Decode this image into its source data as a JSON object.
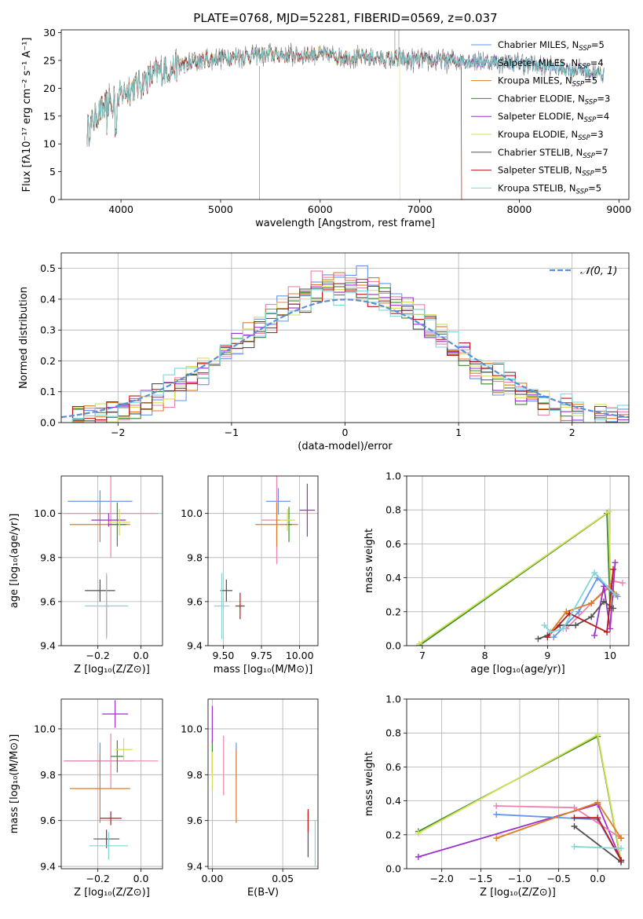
{
  "colors": {
    "chabrier_miles": "#6495ed",
    "salpeter_miles": "#ee82ae",
    "kroupa_miles": "#e07b22",
    "chabrier_elodie": "#3a8a2e",
    "salpeter_elodie": "#9932cc",
    "kroupa_elodie": "#d4e157",
    "chabrier_stelib": "#505050",
    "salpeter_stelib": "#c01818",
    "kroupa_stelib": "#7fd6d6",
    "normal": "#5b8fd8"
  },
  "legend": [
    {
      "key": "chabrier_miles",
      "text": "Chabrier MILES, N",
      "sub": "SSP",
      "tail": "=5"
    },
    {
      "key": "salpeter_miles",
      "text": "Salpeter MILES, N",
      "sub": "SSP",
      "tail": "=4"
    },
    {
      "key": "kroupa_miles",
      "text": "Kroupa MILES, N",
      "sub": "SSP",
      "tail": "=5"
    },
    {
      "key": "chabrier_elodie",
      "text": "Chabrier ELODIE, N",
      "sub": "SSP",
      "tail": "=3"
    },
    {
      "key": "salpeter_elodie",
      "text": "Salpeter ELODIE, N",
      "sub": "SSP",
      "tail": "=4"
    },
    {
      "key": "kroupa_elodie",
      "text": "Kroupa ELODIE, N",
      "sub": "SSP",
      "tail": "=3"
    },
    {
      "key": "chabrier_stelib",
      "text": "Chabrier STELIB, N",
      "sub": "SSP",
      "tail": "=7"
    },
    {
      "key": "salpeter_stelib",
      "text": "Salpeter STELIB, N",
      "sub": "SSP",
      "tail": "=5"
    },
    {
      "key": "kroupa_stelib",
      "text": "Kroupa STELIB, N",
      "sub": "SSP",
      "tail": "=5"
    }
  ],
  "chart_data": [
    {
      "id": "spectrum",
      "type": "line",
      "title": "PLATE=0768, MJD=52281, FIBERID=0569, z=0.037",
      "xlabel": "wavelength [Angstrom, rest frame]",
      "ylabel": "Flux [fλ10⁻¹⁷ erg cm⁻² s⁻¹ A⁻¹]",
      "xlim": [
        3400,
        9100
      ],
      "ylim": [
        0,
        30.5
      ],
      "xticks": [
        4000,
        5000,
        6000,
        7000,
        8000,
        9000
      ],
      "yticks": [
        0,
        5,
        10,
        15,
        20,
        25,
        30
      ],
      "continuum": {
        "x": [
          3650,
          3750,
          3850,
          3950,
          4000,
          4100,
          4200,
          4300,
          4400,
          4500,
          4600,
          4800,
          5000,
          5500,
          6000,
          6500,
          7000,
          7500,
          8000,
          8500,
          8850
        ],
        "y": [
          12,
          15,
          17,
          18,
          19,
          20,
          21,
          22,
          23,
          23.5,
          24,
          25,
          25.5,
          26,
          26,
          25.5,
          25,
          25,
          24.5,
          23.5,
          22.5
        ]
      },
      "model_cutoffs": [
        {
          "key": "kroupa_elodie",
          "x": 6800
        },
        {
          "key": "salpeter_stelib",
          "x": 7420
        },
        {
          "key": "kroupa_miles",
          "x": 7420
        }
      ]
    },
    {
      "id": "residuals",
      "type": "histogram",
      "xlabel": "(data-model)/error",
      "ylabel": "Normed distribution",
      "xlim": [
        -2.5,
        2.5
      ],
      "ylim": [
        0,
        0.55
      ],
      "xticks": [
        -2,
        -1,
        0,
        1,
        2
      ],
      "yticks": [
        0.0,
        0.1,
        0.2,
        0.3,
        0.4,
        0.5
      ],
      "legend_label": "𝒩(0, 1)",
      "bin_width": 0.1
    },
    {
      "id": "age_vs_Z",
      "type": "scatter",
      "xlabel": "Z [log₁₀(Z/Z⊙)]",
      "ylabel": "age  [log₁₀(age/yr)]",
      "xlim": [
        -0.37,
        0.1
      ],
      "ylim": [
        9.4,
        10.17
      ],
      "xticks": [
        -0.2,
        0.0
      ],
      "yticks": [
        9.4,
        9.6,
        9.8,
        10.0
      ],
      "points": [
        {
          "key": "chabrier_miles",
          "x": -0.19,
          "y": 10.055,
          "xerr": 0.15,
          "yerr": 0.05
        },
        {
          "key": "salpeter_miles",
          "x": -0.14,
          "y": 10.0,
          "xerr": 0.22,
          "yerr": 0.2
        },
        {
          "key": "kroupa_miles",
          "x": -0.19,
          "y": 9.95,
          "xerr": 0.14,
          "yerr": 0.08
        },
        {
          "key": "chabrier_elodie",
          "x": -0.11,
          "y": 9.95,
          "xerr": 0.04,
          "yerr": 0.1
        },
        {
          "key": "salpeter_elodie",
          "x": -0.15,
          "y": 9.97,
          "xerr": 0.08,
          "yerr": 0.03
        },
        {
          "key": "kroupa_elodie",
          "x": -0.1,
          "y": 9.96,
          "xerr": 0.05,
          "yerr": 0.06
        },
        {
          "key": "chabrier_stelib",
          "x": -0.19,
          "y": 9.65,
          "xerr": 0.07,
          "yerr": 0.05
        },
        {
          "key": "salpeter_stelib",
          "x": -0.16,
          "y": 9.58,
          "xerr": 0.01,
          "yerr": 0.14
        },
        {
          "key": "kroupa_stelib",
          "x": -0.16,
          "y": 9.58,
          "xerr": 0.1,
          "yerr": 0.15
        }
      ]
    },
    {
      "id": "age_vs_mass",
      "type": "scatter",
      "xlabel": "mass [log₁₀(M/M⊙)]",
      "ylabel": "",
      "xlim": [
        9.4,
        10.12
      ],
      "ylim": [
        9.4,
        10.17
      ],
      "xticks": [
        9.5,
        9.75,
        10.0
      ],
      "yticks": [
        9.4,
        9.6,
        9.8,
        10.0
      ],
      "points": [
        {
          "key": "chabrier_miles",
          "x": 9.86,
          "y": 10.055,
          "xerr": 0.08,
          "yerr": 0.06
        },
        {
          "key": "salpeter_miles",
          "x": 9.85,
          "y": 9.97,
          "xerr": 0.1,
          "yerr": 0.2
        },
        {
          "key": "kroupa_miles",
          "x": 9.85,
          "y": 9.95,
          "xerr": 0.14,
          "yerr": 0.1
        },
        {
          "key": "chabrier_elodie",
          "x": 9.93,
          "y": 9.95,
          "xerr": 0.02,
          "yerr": 0.08
        },
        {
          "key": "salpeter_elodie",
          "x": 10.05,
          "y": 10.015,
          "xerr": 0.05,
          "yerr": 0.12
        },
        {
          "key": "kroupa_elodie",
          "x": 9.92,
          "y": 9.97,
          "xerr": 0.05,
          "yerr": 0.05
        },
        {
          "key": "chabrier_stelib",
          "x": 9.52,
          "y": 9.65,
          "xerr": 0.04,
          "yerr": 0.05
        },
        {
          "key": "salpeter_stelib",
          "x": 9.61,
          "y": 9.58,
          "xerr": 0.03,
          "yerr": 0.06
        },
        {
          "key": "kroupa_stelib",
          "x": 9.49,
          "y": 9.58,
          "xerr": 0.05,
          "yerr": 0.15
        }
      ]
    },
    {
      "id": "weight_vs_age",
      "type": "line",
      "xlabel": "age  [log₁₀(age/yr)]",
      "ylabel": "mass weight",
      "xlim": [
        6.75,
        10.3
      ],
      "ylim": [
        0,
        1
      ],
      "xticks": [
        7,
        8,
        9,
        10
      ],
      "yticks": [
        0.0,
        0.2,
        0.4,
        0.6,
        0.8,
        1.0
      ],
      "series": [
        {
          "key": "chabrier_elodie",
          "x": [
            6.95,
            9.95,
            10.0
          ],
          "y": [
            0.0,
            0.78,
            0.22
          ]
        },
        {
          "key": "kroupa_elodie",
          "x": [
            6.95,
            9.98,
            10.02
          ],
          "y": [
            0.01,
            0.79,
            0.2
          ]
        },
        {
          "key": "chabrier_miles",
          "x": [
            9.1,
            9.5,
            9.8,
            10.05,
            10.12
          ],
          "y": [
            0.05,
            0.2,
            0.4,
            0.3,
            0.29
          ]
        },
        {
          "key": "salpeter_miles",
          "x": [
            9.3,
            9.7,
            10.05,
            10.2
          ],
          "y": [
            0.1,
            0.25,
            0.38,
            0.37
          ]
        },
        {
          "key": "kroupa_miles",
          "x": [
            9.05,
            9.3,
            9.7,
            10.0,
            10.1
          ],
          "y": [
            0.08,
            0.2,
            0.25,
            0.35,
            0.3
          ]
        },
        {
          "key": "salpeter_elodie",
          "x": [
            9.75,
            9.9,
            10.0,
            10.08
          ],
          "y": [
            0.06,
            0.35,
            0.1,
            0.49
          ]
        },
        {
          "key": "chabrier_stelib",
          "x": [
            8.85,
            9.0,
            9.2,
            9.45,
            9.7,
            9.9,
            10.05
          ],
          "y": [
            0.04,
            0.06,
            0.12,
            0.12,
            0.17,
            0.26,
            0.22
          ]
        },
        {
          "key": "salpeter_stelib",
          "x": [
            9.0,
            9.35,
            9.95,
            10.05
          ],
          "y": [
            0.05,
            0.19,
            0.08,
            0.45
          ]
        },
        {
          "key": "kroupa_stelib",
          "x": [
            8.95,
            9.05,
            9.25,
            9.75,
            10.08
          ],
          "y": [
            0.12,
            0.08,
            0.1,
            0.43,
            0.3
          ]
        }
      ]
    },
    {
      "id": "mass_vs_Z",
      "type": "scatter",
      "xlabel": "Z [log₁₀(Z/Z⊙)]",
      "ylabel": "mass [log₁₀(M/M⊙)]",
      "xlim": [
        -0.37,
        0.1
      ],
      "ylim": [
        9.39,
        10.13
      ],
      "xticks": [
        -0.2,
        0.0
      ],
      "yticks": [
        9.4,
        9.6,
        9.8,
        10.0
      ],
      "points": [
        {
          "key": "chabrier_miles",
          "x": -0.19,
          "y": 9.86,
          "xerr": 0.16,
          "yerr": 0.08
        },
        {
          "key": "salpeter_miles",
          "x": -0.14,
          "y": 9.86,
          "xerr": 0.22,
          "yerr": 0.12
        },
        {
          "key": "kroupa_miles",
          "x": -0.19,
          "y": 9.74,
          "xerr": 0.14,
          "yerr": 0.15
        },
        {
          "key": "chabrier_elodie",
          "x": -0.11,
          "y": 9.88,
          "xerr": 0.03,
          "yerr": 0.07
        },
        {
          "key": "salpeter_elodie",
          "x": -0.12,
          "y": 10.065,
          "xerr": 0.06,
          "yerr": 0.06
        },
        {
          "key": "kroupa_elodie",
          "x": -0.08,
          "y": 9.91,
          "xerr": 0.04,
          "yerr": 0.05
        },
        {
          "key": "chabrier_stelib",
          "x": -0.16,
          "y": 9.52,
          "xerr": 0.06,
          "yerr": 0.04
        },
        {
          "key": "salpeter_stelib",
          "x": -0.14,
          "y": 9.61,
          "xerr": 0.05,
          "yerr": 0.03
        },
        {
          "key": "kroupa_stelib",
          "x": -0.15,
          "y": 9.49,
          "xerr": 0.09,
          "yerr": 0.06
        }
      ]
    },
    {
      "id": "mass_vs_ebv",
      "type": "scatter",
      "xlabel": "E(B-V)",
      "ylabel": "",
      "xlim": [
        -0.003,
        0.075
      ],
      "ylim": [
        9.39,
        10.13
      ],
      "xticks": [
        0.0,
        0.05
      ],
      "yticks": [
        9.4,
        9.6,
        9.8,
        10.0
      ],
      "points": [
        {
          "key": "chabrier_miles",
          "x": 0.017,
          "y": 9.86,
          "xerr": 0.0,
          "yerr": 0.08
        },
        {
          "key": "salpeter_miles",
          "x": 0.008,
          "y": 9.84,
          "xerr": 0.0,
          "yerr": 0.13
        },
        {
          "key": "kroupa_miles",
          "x": 0.017,
          "y": 9.75,
          "xerr": 0.0,
          "yerr": 0.16
        },
        {
          "key": "chabrier_elodie",
          "x": 0.0,
          "y": 9.88,
          "xerr": 0.0,
          "yerr": 0.07
        },
        {
          "key": "salpeter_elodie",
          "x": 0.0,
          "y": 10.02,
          "xerr": 0.0,
          "yerr": 0.08
        },
        {
          "key": "kroupa_elodie",
          "x": 0.0,
          "y": 9.82,
          "xerr": 0.0,
          "yerr": 0.08
        },
        {
          "key": "chabrier_stelib",
          "x": 0.068,
          "y": 9.54,
          "xerr": 0.0,
          "yerr": 0.1
        },
        {
          "key": "salpeter_stelib",
          "x": 0.068,
          "y": 9.6,
          "xerr": 0.0,
          "yerr": 0.05
        },
        {
          "key": "kroupa_stelib",
          "x": 0.073,
          "y": 9.5,
          "xerr": 0.0,
          "yerr": 0.1
        }
      ]
    },
    {
      "id": "weight_vs_Z",
      "type": "line",
      "xlabel": "Z [log₁₀(Z/Z⊙)]",
      "ylabel": "mass weight",
      "xlim": [
        -2.45,
        0.4
      ],
      "ylim": [
        0,
        1
      ],
      "xticks": [
        -2.0,
        -1.5,
        -1.0,
        -0.5,
        0.0
      ],
      "yticks": [
        0.0,
        0.2,
        0.4,
        0.6,
        0.8,
        1.0
      ],
      "series": [
        {
          "key": "chabrier_elodie",
          "x": [
            -2.3,
            0.0,
            0.3
          ],
          "y": [
            0.22,
            0.78,
            0.04
          ]
        },
        {
          "key": "kroupa_elodie",
          "x": [
            -2.3,
            0.0,
            0.3
          ],
          "y": [
            0.21,
            0.79,
            0.05
          ]
        },
        {
          "key": "salpeter_elodie",
          "x": [
            -2.3,
            0.0,
            0.3
          ],
          "y": [
            0.07,
            0.38,
            0.05
          ]
        },
        {
          "key": "chabrier_miles",
          "x": [
            -1.3,
            0.0,
            0.3
          ],
          "y": [
            0.32,
            0.29,
            0.05
          ]
        },
        {
          "key": "salpeter_miles",
          "x": [
            -1.3,
            -0.3,
            0.3
          ],
          "y": [
            0.37,
            0.36,
            0.18
          ]
        },
        {
          "key": "kroupa_miles",
          "x": [
            -1.3,
            0.0,
            0.3
          ],
          "y": [
            0.18,
            0.39,
            0.18
          ]
        },
        {
          "key": "chabrier_stelib",
          "x": [
            -0.3,
            0.3
          ],
          "y": [
            0.25,
            0.04
          ]
        },
        {
          "key": "salpeter_stelib",
          "x": [
            -0.3,
            0.0,
            0.3
          ],
          "y": [
            0.3,
            0.3,
            0.05
          ]
        },
        {
          "key": "kroupa_stelib",
          "x": [
            -0.3,
            0.3
          ],
          "y": [
            0.13,
            0.12
          ]
        }
      ]
    }
  ]
}
